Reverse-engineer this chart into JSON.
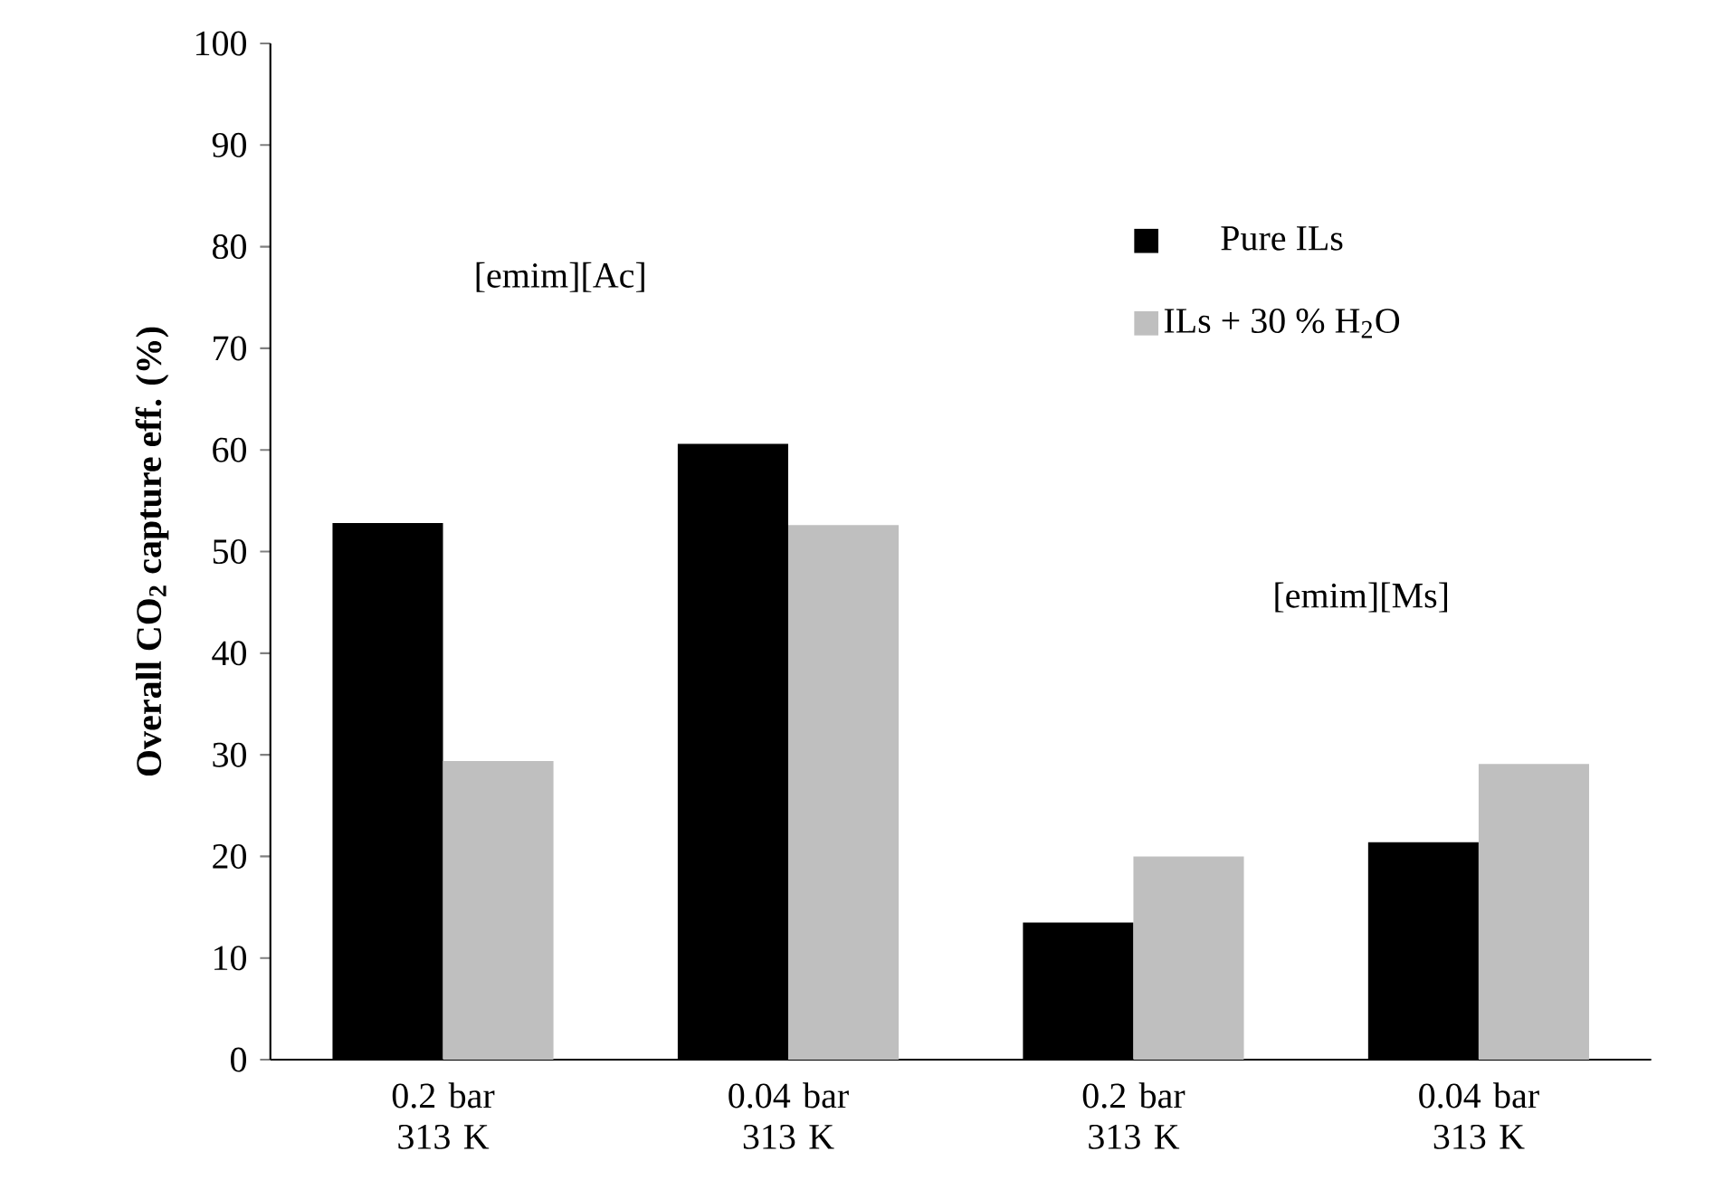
{
  "chart_data": {
    "type": "bar",
    "ylabel": "Overall CO$_{2}$ capture eff. (%)",
    "categories": [
      "0.2 bar 313 K",
      "0.04 bar 313 K",
      "0.2 bar 313 K",
      "0.04 bar 313 K"
    ],
    "series": [
      {
        "name": "Pure ILs",
        "color": "#000000",
        "values": [
          52.8,
          60.6,
          13.5,
          21.4
        ]
      },
      {
        "name": "ILs + 30 % H$_{2}$O",
        "color": "#bfbfbf",
        "values": [
          29.4,
          52.6,
          20.0,
          29.1
        ]
      }
    ],
    "annotations": [
      "[emim][Ac]",
      "[emim][Ms]"
    ],
    "ylim": [
      0,
      100
    ],
    "yticks": [
      0,
      10,
      20,
      30,
      40,
      50,
      60,
      70,
      80,
      90,
      100
    ],
    "grid": false,
    "legend": "top right"
  }
}
